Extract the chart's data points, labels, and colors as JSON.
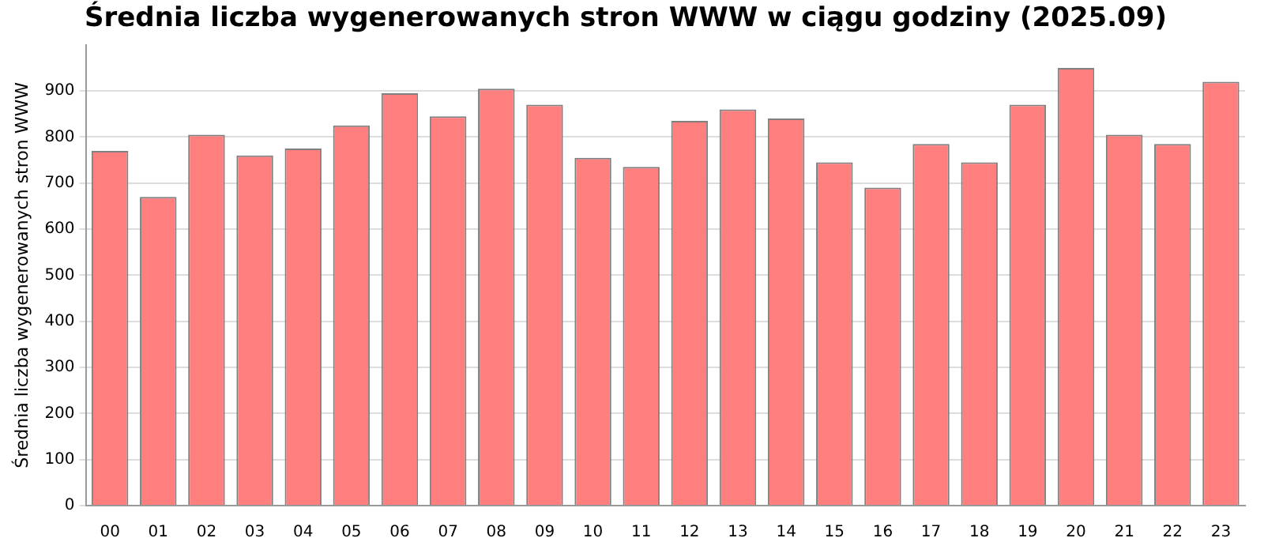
{
  "chart_data": {
    "type": "bar",
    "title": "Średnia liczba wygenerowanych stron WWW w ciągu godziny (2025.09)",
    "ylabel": "Średnia liczba wygenerowanych stron WWW",
    "categories": [
      "00",
      "01",
      "02",
      "03",
      "04",
      "05",
      "06",
      "07",
      "08",
      "09",
      "10",
      "11",
      "12",
      "13",
      "14",
      "15",
      "16",
      "17",
      "18",
      "19",
      "20",
      "21",
      "22",
      "23"
    ],
    "values": [
      770,
      670,
      805,
      760,
      775,
      825,
      895,
      845,
      905,
      870,
      755,
      735,
      835,
      860,
      840,
      745,
      690,
      785,
      745,
      870,
      950,
      805,
      785,
      920
    ],
    "color": "#ff7f7f",
    "ylim": [
      0,
      1000
    ],
    "yticks": [
      0,
      100,
      200,
      300,
      400,
      500,
      600,
      700,
      800,
      900
    ],
    "grid": "y"
  }
}
